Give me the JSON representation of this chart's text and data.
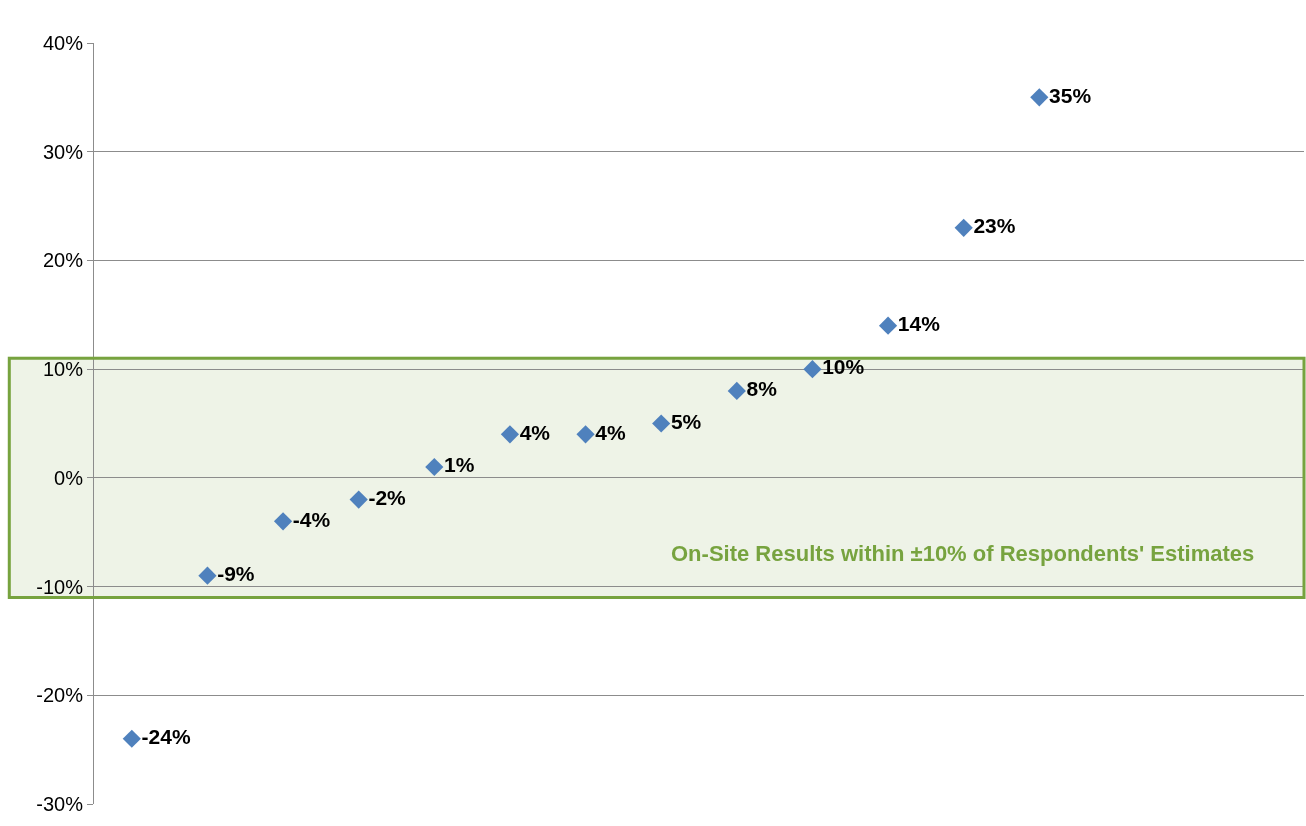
{
  "chart_data": {
    "type": "scatter",
    "categories": [
      null,
      null,
      null,
      null,
      null,
      null,
      null,
      null,
      null,
      null,
      null,
      null,
      null,
      null,
      null,
      null
    ],
    "values": [
      -24,
      -9,
      -4,
      -2,
      1,
      4,
      4,
      5,
      8,
      10,
      14,
      23,
      35,
      null,
      null,
      null
    ],
    "value_labels": [
      "-24%",
      "-9%",
      "-4%",
      "-2%",
      "1%",
      "4%",
      "4%",
      "5%",
      "8%",
      "10%",
      "14%",
      "23%",
      "35%",
      null,
      null,
      null
    ],
    "color": "#4f81bd",
    "marker": "diamond",
    "grid": "y",
    "legend": false,
    "tick_labels": "y",
    "ylim": [
      -30,
      40
    ],
    "yticks": [
      {
        "value": -30,
        "label": "-30%"
      },
      {
        "value": -20,
        "label": "-20%"
      },
      {
        "value": -10,
        "label": "-10%"
      },
      {
        "value": 0,
        "label": "0%"
      },
      {
        "value": 10,
        "label": "10%"
      },
      {
        "value": 20,
        "label": "20%"
      },
      {
        "value": 30,
        "label": "30%"
      },
      {
        "value": 40,
        "label": "40%"
      }
    ],
    "bands": [
      {
        "axis": "y",
        "from": -11,
        "to": 11,
        "label": "On-Site Results within ±10% of Respondents' Estimates",
        "color": "#77a33f"
      }
    ]
  }
}
